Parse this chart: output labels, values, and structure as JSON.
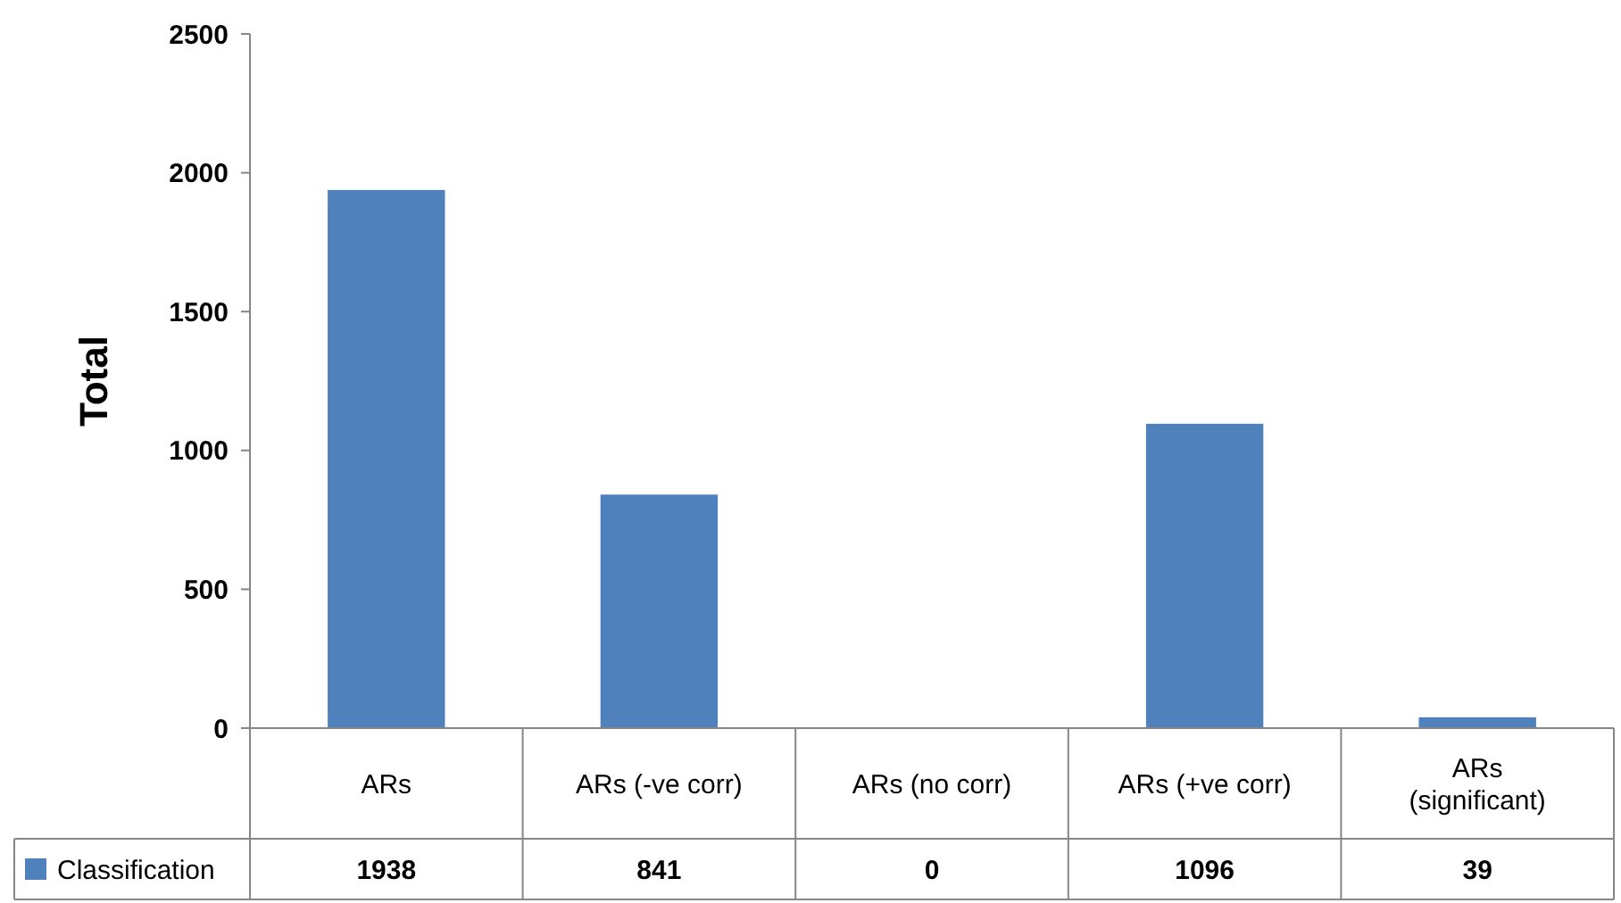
{
  "chart_data": {
    "type": "bar",
    "ylabel": "Total",
    "categories": [
      "ARs",
      "ARs (-ve corr)",
      "ARs (no corr)",
      "ARs (+ve corr)",
      "ARs (significant)"
    ],
    "series": [
      {
        "name": "Classification",
        "color": "#4f81bd",
        "values": [
          1938,
          841,
          0,
          1096,
          39
        ]
      }
    ],
    "ylim": [
      0,
      2500
    ],
    "yticks": [
      0,
      500,
      1000,
      1500,
      2000,
      2500
    ],
    "grid": false,
    "legend": "bottom",
    "data_labels": true
  }
}
